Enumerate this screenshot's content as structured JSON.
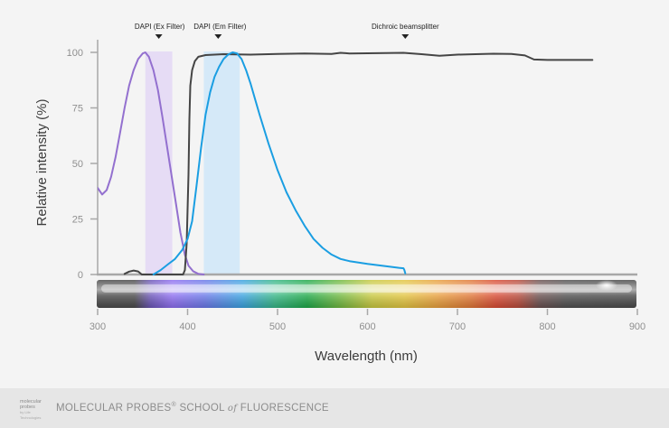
{
  "chart_data": {
    "type": "line",
    "title": "",
    "xlabel": "Wavelength (nm)",
    "ylabel": "Relative intensity (%)",
    "xlim": [
      300,
      900
    ],
    "ylim": [
      0,
      100
    ],
    "xticks": [
      "300",
      "400",
      "500",
      "600",
      "700",
      "800",
      "900"
    ],
    "yticks": [
      "0",
      "25",
      "50",
      "75",
      "100"
    ],
    "grid": false,
    "legend": "none",
    "bands": [
      {
        "label": "DAPI (Ex Filter)",
        "x0": 353,
        "x1": 383,
        "color": "#e6dcf5"
      },
      {
        "label": "DAPI (Em Filter)",
        "x0": 418,
        "x1": 458,
        "color": "#d5e9f8"
      }
    ],
    "markers": [
      {
        "label": "Dichroic beamsplitter",
        "x": 642
      }
    ],
    "series": [
      {
        "color": "#9370cf",
        "points": [
          [
            300,
            39
          ],
          [
            305,
            36
          ],
          [
            310,
            38
          ],
          [
            315,
            44
          ],
          [
            320,
            53
          ],
          [
            325,
            64
          ],
          [
            330,
            75
          ],
          [
            335,
            85
          ],
          [
            340,
            92
          ],
          [
            345,
            97
          ],
          [
            350,
            99.5
          ],
          [
            353,
            100
          ],
          [
            357,
            98
          ],
          [
            362,
            92
          ],
          [
            367,
            83
          ],
          [
            372,
            71
          ],
          [
            377,
            58
          ],
          [
            382,
            45
          ],
          [
            387,
            32
          ],
          [
            392,
            19
          ],
          [
            397,
            9
          ],
          [
            401,
            4
          ],
          [
            406,
            1.5
          ],
          [
            412,
            0.3
          ],
          [
            418,
            0
          ]
        ]
      },
      {
        "color": "#454545",
        "points": [
          [
            330,
            0.3
          ],
          [
            335,
            1.3
          ],
          [
            340,
            1.8
          ],
          [
            345,
            1.4
          ],
          [
            349,
            0
          ],
          [
            395,
            0
          ],
          [
            397,
            2
          ],
          [
            399,
            14
          ],
          [
            401,
            45
          ],
          [
            402,
            70
          ],
          [
            403,
            85
          ],
          [
            405,
            92
          ],
          [
            408,
            96
          ],
          [
            412,
            98
          ],
          [
            420,
            98.8
          ],
          [
            440,
            99.2
          ],
          [
            470,
            99
          ],
          [
            500,
            99.3
          ],
          [
            530,
            99.5
          ],
          [
            560,
            99.3
          ],
          [
            570,
            99.8
          ],
          [
            580,
            99.5
          ],
          [
            600,
            99.6
          ],
          [
            620,
            99.7
          ],
          [
            640,
            99.8
          ],
          [
            660,
            99.2
          ],
          [
            680,
            98.5
          ],
          [
            700,
            99
          ],
          [
            720,
            99.2
          ],
          [
            740,
            99.4
          ],
          [
            760,
            99.3
          ],
          [
            775,
            98.6
          ],
          [
            785,
            96.8
          ],
          [
            800,
            96.6
          ],
          [
            820,
            96.6
          ],
          [
            850,
            96.6
          ]
        ]
      },
      {
        "color": "#1a9ee2",
        "points": [
          [
            362,
            0
          ],
          [
            370,
            2
          ],
          [
            378,
            4.5
          ],
          [
            386,
            7
          ],
          [
            394,
            11
          ],
          [
            400,
            16
          ],
          [
            405,
            24
          ],
          [
            410,
            40
          ],
          [
            415,
            57
          ],
          [
            420,
            72
          ],
          [
            425,
            82
          ],
          [
            430,
            89
          ],
          [
            435,
            93.5
          ],
          [
            440,
            97
          ],
          [
            445,
            99
          ],
          [
            450,
            100
          ],
          [
            455,
            99.5
          ],
          [
            460,
            97
          ],
          [
            465,
            92
          ],
          [
            470,
            86
          ],
          [
            475,
            79
          ],
          [
            480,
            72
          ],
          [
            490,
            59
          ],
          [
            500,
            47
          ],
          [
            510,
            37
          ],
          [
            520,
            29
          ],
          [
            530,
            22
          ],
          [
            540,
            16
          ],
          [
            550,
            12
          ],
          [
            560,
            9
          ],
          [
            570,
            7
          ],
          [
            580,
            6
          ],
          [
            600,
            4.8
          ],
          [
            620,
            3.8
          ],
          [
            635,
            3
          ],
          [
            640,
            2.8
          ],
          [
            641,
            2
          ],
          [
            642,
            0.5
          ]
        ]
      }
    ]
  },
  "footer": {
    "logo_line1": "molecular",
    "logo_line2": "probes",
    "logo_sub": "by Life Technologies",
    "title_part1": "MOLECULAR PROBES",
    "title_reg": "®",
    "title_part2": " SCHOOL ",
    "title_of": "of",
    "title_part3": " FLUORESCENCE"
  }
}
